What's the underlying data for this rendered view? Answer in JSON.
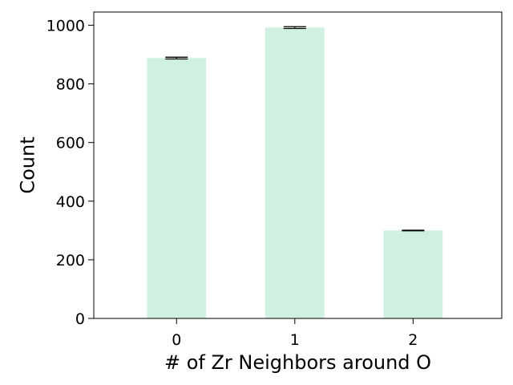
{
  "chart_data": {
    "type": "bar",
    "title": "",
    "xlabel": "# of Zr Neighbors around O",
    "ylabel": "Count",
    "categories": [
      "0",
      "1",
      "2"
    ],
    "values": [
      888,
      992,
      300
    ],
    "errors": [
      3,
      3,
      1
    ],
    "ylim": [
      0,
      1045
    ],
    "yticks": [
      0,
      200,
      400,
      600,
      800,
      1000
    ],
    "bar_color": "#d0f0e0",
    "error_color": "#000000",
    "grid": false,
    "legend": "none"
  }
}
